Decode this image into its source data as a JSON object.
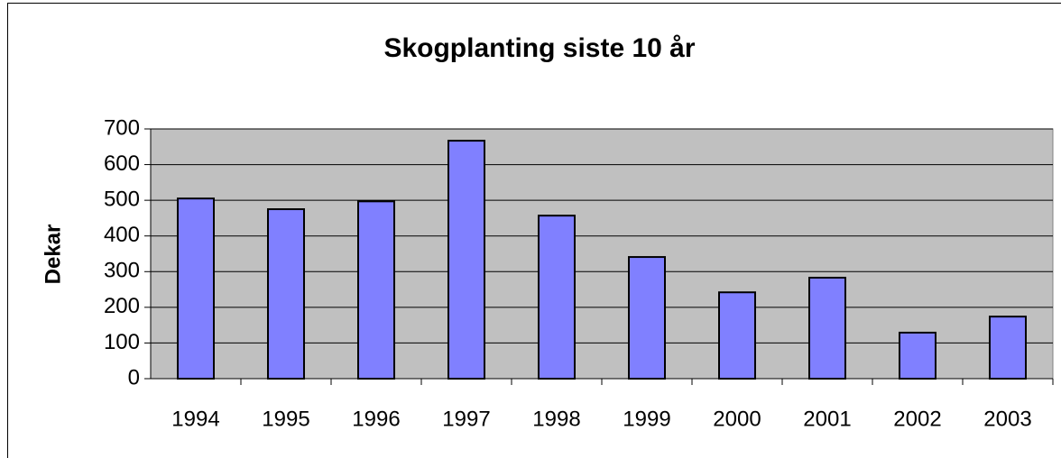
{
  "chart_data": {
    "type": "bar",
    "title": "Skogplanting siste 10 år",
    "y_label": "Dekar",
    "categories": [
      "1994",
      "1995",
      "1996",
      "1997",
      "1998",
      "1999",
      "2000",
      "2001",
      "2002",
      "2003"
    ],
    "values": [
      505,
      475,
      497,
      667,
      457,
      341,
      242,
      283,
      129,
      174
    ],
    "color": "#8080ff",
    "plot_background": "#c0c0c0",
    "ylim": [
      0,
      700
    ],
    "yticks": [
      0,
      100,
      200,
      300,
      400,
      500,
      600,
      700
    ],
    "grid": true
  }
}
